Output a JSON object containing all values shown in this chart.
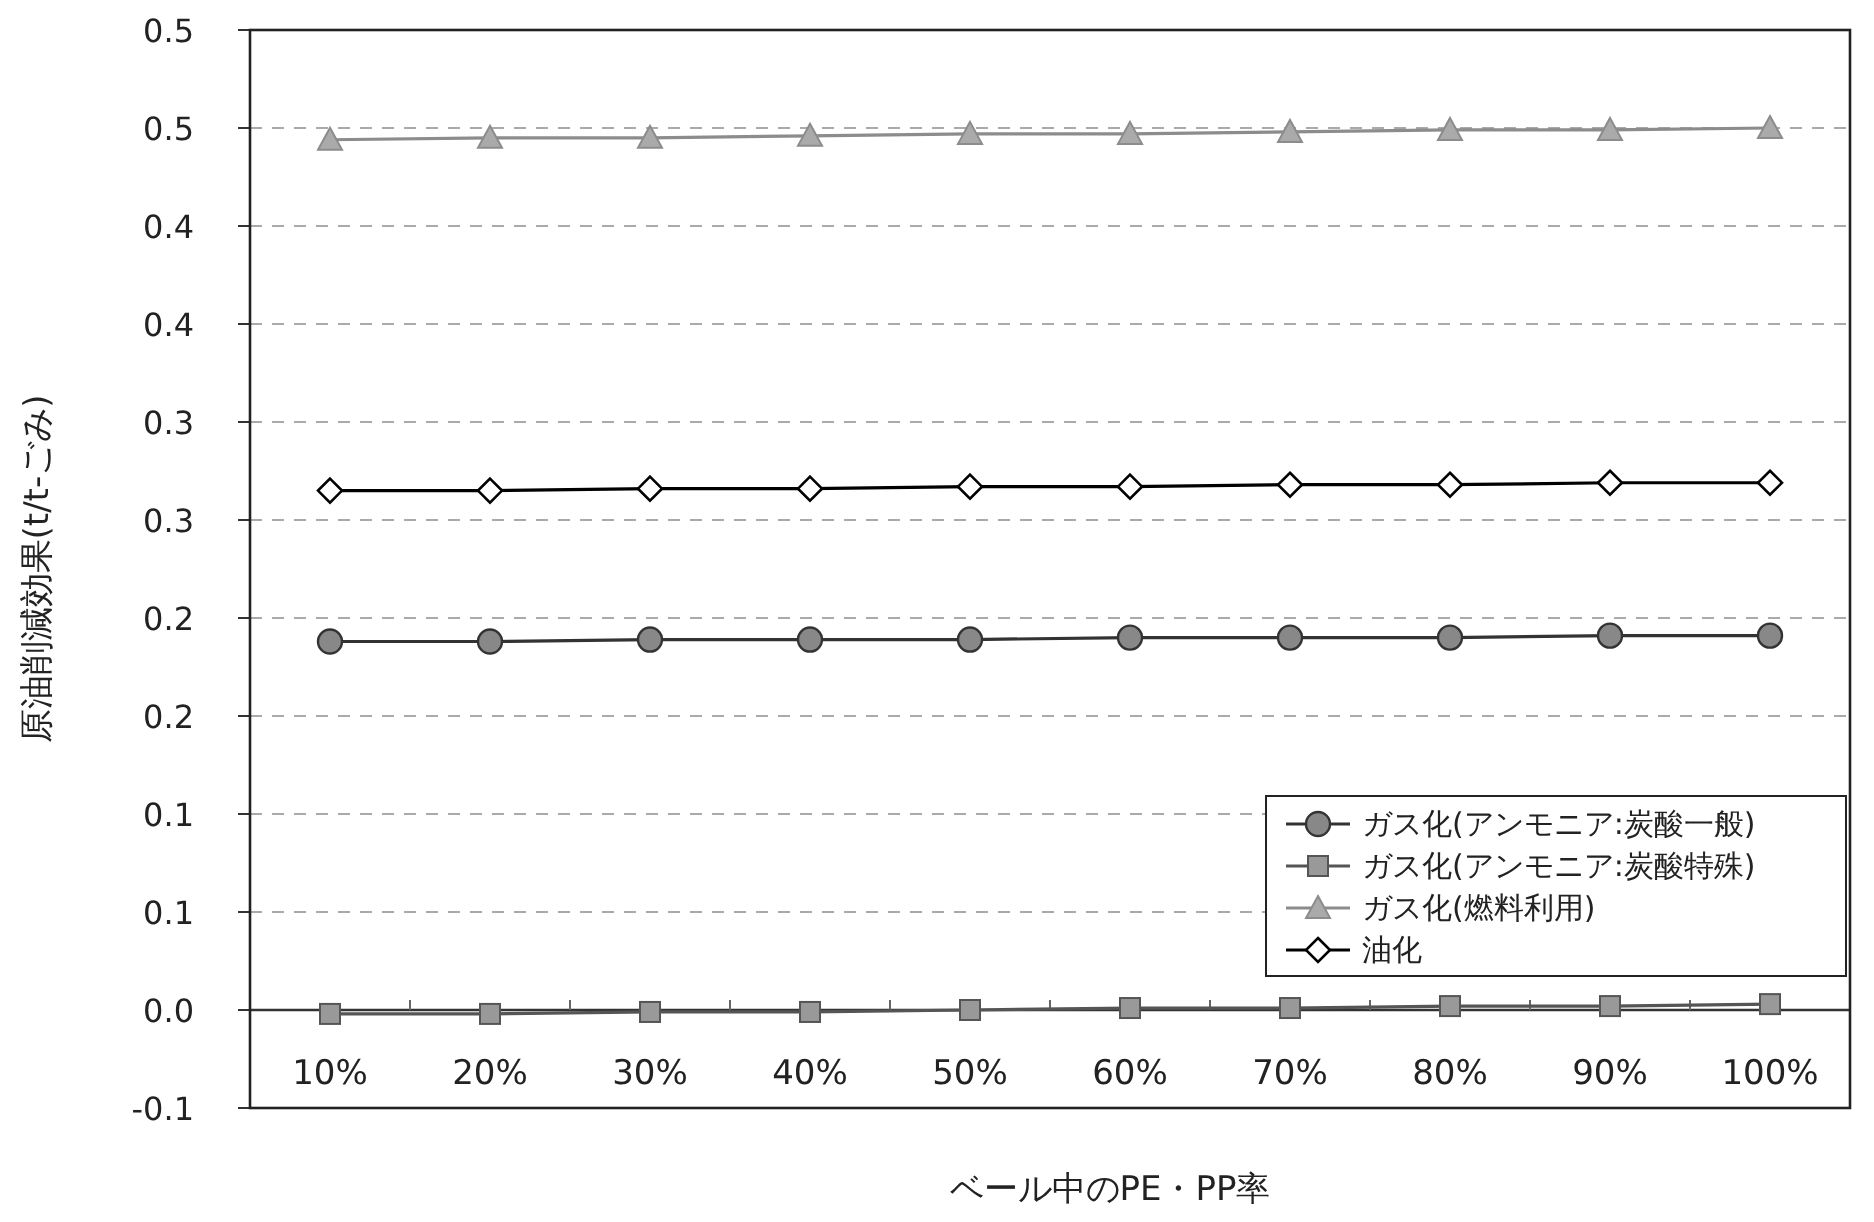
{
  "chart_data": {
    "type": "line",
    "xlabel": "ベール中のPE・PP率",
    "ylabel": "原油削減効果(t/t-ごみ)",
    "categories": [
      "10%",
      "20%",
      "30%",
      "40%",
      "50%",
      "60%",
      "70%",
      "80%",
      "90%",
      "100%"
    ],
    "series": [
      {
        "name": "ガス化(アンモニア:炭酸一般)",
        "color": "#333333",
        "marker": "circle",
        "values": [
          0.188,
          0.188,
          0.189,
          0.189,
          0.189,
          0.19,
          0.19,
          0.19,
          0.191,
          0.191
        ]
      },
      {
        "name": "ガス化(アンモニア:炭酸特殊)",
        "color": "#555555",
        "marker": "square",
        "values": [
          -0.002,
          -0.002,
          -0.001,
          -0.001,
          0.0,
          0.001,
          0.001,
          0.002,
          0.002,
          0.003
        ]
      },
      {
        "name": "ガス化(燃料利用)",
        "color": "#8c8c8c",
        "marker": "triangle",
        "values": [
          0.444,
          0.445,
          0.445,
          0.446,
          0.447,
          0.447,
          0.448,
          0.449,
          0.449,
          0.45
        ]
      },
      {
        "name": "油化",
        "color": "#000000",
        "marker": "diamond",
        "values": [
          0.265,
          0.265,
          0.266,
          0.266,
          0.267,
          0.267,
          0.268,
          0.268,
          0.269,
          0.269
        ]
      }
    ],
    "ylim": [
      -0.05,
      0.5
    ],
    "yticks": [
      {
        "value": -0.05,
        "label": "-0.1"
      },
      {
        "value": 0.0,
        "label": "0.0"
      },
      {
        "value": 0.05,
        "label": "0.1"
      },
      {
        "value": 0.1,
        "label": "0.1"
      },
      {
        "value": 0.15,
        "label": "0.2"
      },
      {
        "value": 0.2,
        "label": "0.2"
      },
      {
        "value": 0.25,
        "label": "0.3"
      },
      {
        "value": 0.3,
        "label": "0.3"
      },
      {
        "value": 0.35,
        "label": "0.4"
      },
      {
        "value": 0.4,
        "label": "0.4"
      },
      {
        "value": 0.45,
        "label": "0.5"
      },
      {
        "value": 0.5,
        "label": "0.5"
      }
    ],
    "grid": "y",
    "legend": "bottom right"
  }
}
